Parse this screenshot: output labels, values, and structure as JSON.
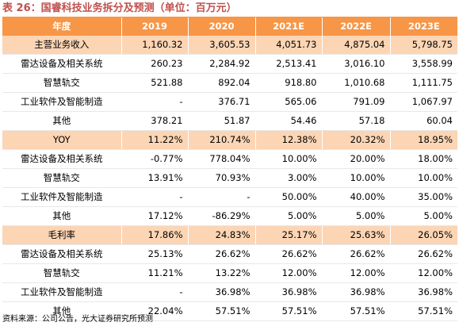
{
  "title": "表 26：国睿科技业务拆分及预测（单位：百万元）",
  "columns": [
    "年度",
    "2019",
    "2020",
    "2021E",
    "2022E",
    "2023E"
  ],
  "rows": [
    {
      "label": "主营业务收入",
      "values": [
        "1,160.32",
        "3,605.53",
        "4,051.73",
        "4,875.04",
        "5,798.75"
      ],
      "highlight": true
    },
    {
      "label": "雷达设备及相关系统",
      "values": [
        "260.23",
        "2,284.92",
        "2,513.41",
        "3,016.10",
        "3,558.99"
      ],
      "highlight": false
    },
    {
      "label": "智慧轨交",
      "values": [
        "521.88",
        "892.04",
        "918.80",
        "1,010.68",
        "1,111.75"
      ],
      "highlight": false
    },
    {
      "label": "工业软件及智能制造",
      "values": [
        "-",
        "376.71",
        "565.06",
        "791.09",
        "1,067.97"
      ],
      "highlight": false
    },
    {
      "label": "其他",
      "values": [
        "378.21",
        "51.87",
        "54.46",
        "57.18",
        "60.04"
      ],
      "highlight": false
    },
    {
      "label": "YOY",
      "values": [
        "11.22%",
        "210.74%",
        "12.38%",
        "20.32%",
        "18.95%"
      ],
      "highlight": true
    },
    {
      "label": "雷达设备及相关系统",
      "values": [
        "-0.77%",
        "778.04%",
        "10.00%",
        "20.00%",
        "18.00%"
      ],
      "highlight": false
    },
    {
      "label": "智慧轨交",
      "values": [
        "13.91%",
        "70.93%",
        "3.00%",
        "10.00%",
        "10.00%"
      ],
      "highlight": false
    },
    {
      "label": "工业软件及智能制造",
      "values": [
        "-",
        "-",
        "50.00%",
        "40.00%",
        "35.00%"
      ],
      "highlight": false
    },
    {
      "label": "其他",
      "values": [
        "17.12%",
        "-86.29%",
        "5.00%",
        "5.00%",
        "5.00%"
      ],
      "highlight": false
    },
    {
      "label": "毛利率",
      "values": [
        "17.86%",
        "24.83%",
        "25.17%",
        "25.63%",
        "26.05%"
      ],
      "highlight": true
    },
    {
      "label": "雷达设备及相关系统",
      "values": [
        "25.13%",
        "26.62%",
        "26.62%",
        "26.62%",
        "26.62%"
      ],
      "highlight": false
    },
    {
      "label": "智慧轨交",
      "values": [
        "11.21%",
        "13.22%",
        "12.00%",
        "12.00%",
        "12.00%"
      ],
      "highlight": false
    },
    {
      "label": "工业软件及智能制造",
      "values": [
        "-",
        "36.98%",
        "36.98%",
        "36.98%",
        "36.98%"
      ],
      "highlight": false
    },
    {
      "label": "其他",
      "values": [
        "22.04%",
        "57.51%",
        "57.51%",
        "57.51%",
        "57.51%"
      ],
      "highlight": false
    }
  ],
  "source": "资料来源：公司公告，光大证券研究所预测",
  "colors": {
    "header_bg": "#f79646",
    "highlight_row": "#fcd5b4",
    "title": "#c0504d"
  }
}
